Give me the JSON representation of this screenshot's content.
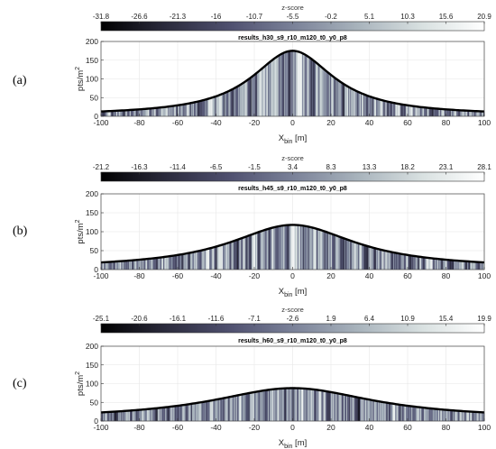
{
  "figure": {
    "colorbar_title": "z-score",
    "x_axis_label_main": "X",
    "x_axis_label_sub": "bin",
    "x_axis_label_unit": "[m]",
    "y_axis_label_main": "pts/m",
    "y_axis_label_sup": "2"
  },
  "colors": {
    "colormap": [
      "#000000",
      "#2b2b3d",
      "#505170",
      "#7a8198",
      "#a8b3bc",
      "#d9e1e1",
      "#ffffff"
    ],
    "envelope": "#000000",
    "axis": "#444444",
    "grid": "#e6e6e6"
  },
  "chart_data": [
    {
      "type": "heatmap",
      "panel_label": "(a)",
      "title": "results_h30_s9_r10_m120_t0_y0_p8",
      "colorbar_ticks": [
        "-31.8",
        "-26.6",
        "-21.3",
        "-16",
        "-10.7",
        "-5.5",
        "-0.2",
        "5.1",
        "10.3",
        "15.6",
        "20.9"
      ],
      "zlim": [
        -31.8,
        20.9
      ],
      "x_ticks": [
        "-100",
        "-80",
        "-60",
        "-40",
        "-20",
        "0",
        "20",
        "40",
        "60",
        "80",
        "100"
      ],
      "y_ticks": [
        "0",
        "50",
        "100",
        "150",
        "200"
      ],
      "xlim": [
        -100,
        100
      ],
      "ylim": [
        0,
        200
      ],
      "envelope": {
        "peak": 175,
        "edge": 13,
        "gamma": 26
      },
      "seed": 11
    },
    {
      "type": "heatmap",
      "panel_label": "(b)",
      "title": "results_h45_s9_r10_m120_t0_y0_p8",
      "colorbar_ticks": [
        "-21.2",
        "-16.3",
        "-11.4",
        "-6.5",
        "-1.5",
        "3.4",
        "8.3",
        "13.3",
        "18.2",
        "23.1",
        "28.1"
      ],
      "zlim": [
        -21.2,
        28.1
      ],
      "x_ticks": [
        "-100",
        "-80",
        "-60",
        "-40",
        "-20",
        "0",
        "20",
        "40",
        "60",
        "80",
        "100"
      ],
      "y_ticks": [
        "0",
        "50",
        "100",
        "150",
        "200"
      ],
      "xlim": [
        -100,
        100
      ],
      "ylim": [
        0,
        200
      ],
      "envelope": {
        "peak": 118,
        "edge": 19,
        "gamma": 40
      },
      "seed": 27
    },
    {
      "type": "heatmap",
      "panel_label": "(c)",
      "title": "results_h60_s9_r10_m120_t0_y0_p8",
      "colorbar_ticks": [
        "-25.1",
        "-20.6",
        "-16.1",
        "-11.6",
        "-7.1",
        "-2.6",
        "1.9",
        "6.4",
        "10.9",
        "15.4",
        "19.9"
      ],
      "zlim": [
        -25.1,
        19.9
      ],
      "x_ticks": [
        "-100",
        "-80",
        "-60",
        "-40",
        "-20",
        "0",
        "20",
        "40",
        "60",
        "80",
        "100"
      ],
      "y_ticks": [
        "0",
        "50",
        "100",
        "150",
        "200"
      ],
      "xlim": [
        -100,
        100
      ],
      "ylim": [
        0,
        200
      ],
      "envelope": {
        "peak": 88,
        "edge": 23,
        "gamma": 52
      },
      "seed": 43
    }
  ]
}
